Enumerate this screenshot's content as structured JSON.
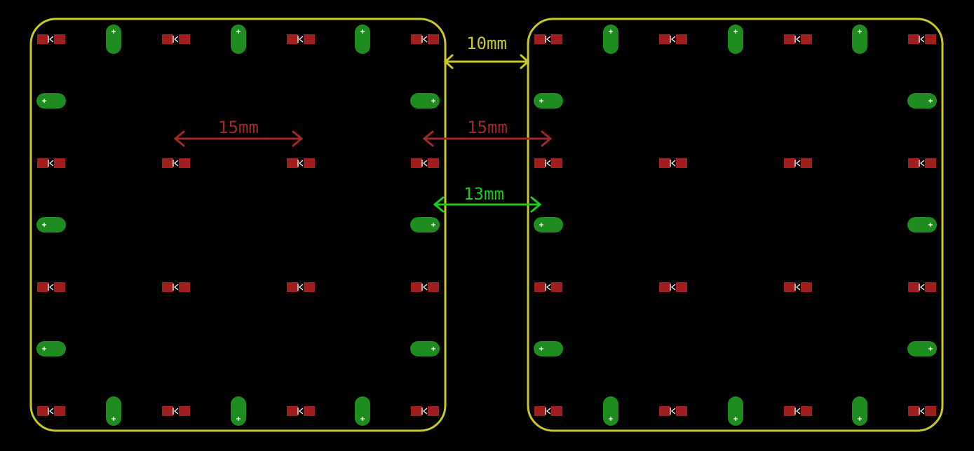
{
  "colors": {
    "background": "#000000",
    "outline": "#c8c828",
    "smd_pad": "#a01e1e",
    "smd_mark": "#ffffff",
    "oval_pad": "#1e8c1e",
    "oval_hole": "#ffffff",
    "dim_yellow": "#c8c828",
    "dim_red": "#a02828",
    "dim_green": "#1ec81e"
  },
  "boards": [
    "left-board",
    "right-board"
  ],
  "dimensions": [
    {
      "id": "gap-10",
      "label": "10mm",
      "color": "dim_yellow"
    },
    {
      "id": "pitch-15-left",
      "label": "15mm",
      "color": "dim_red"
    },
    {
      "id": "pitch-15-gap",
      "label": "15mm",
      "color": "dim_red"
    },
    {
      "id": "gap-13",
      "label": "13mm",
      "color": "dim_green"
    }
  ]
}
